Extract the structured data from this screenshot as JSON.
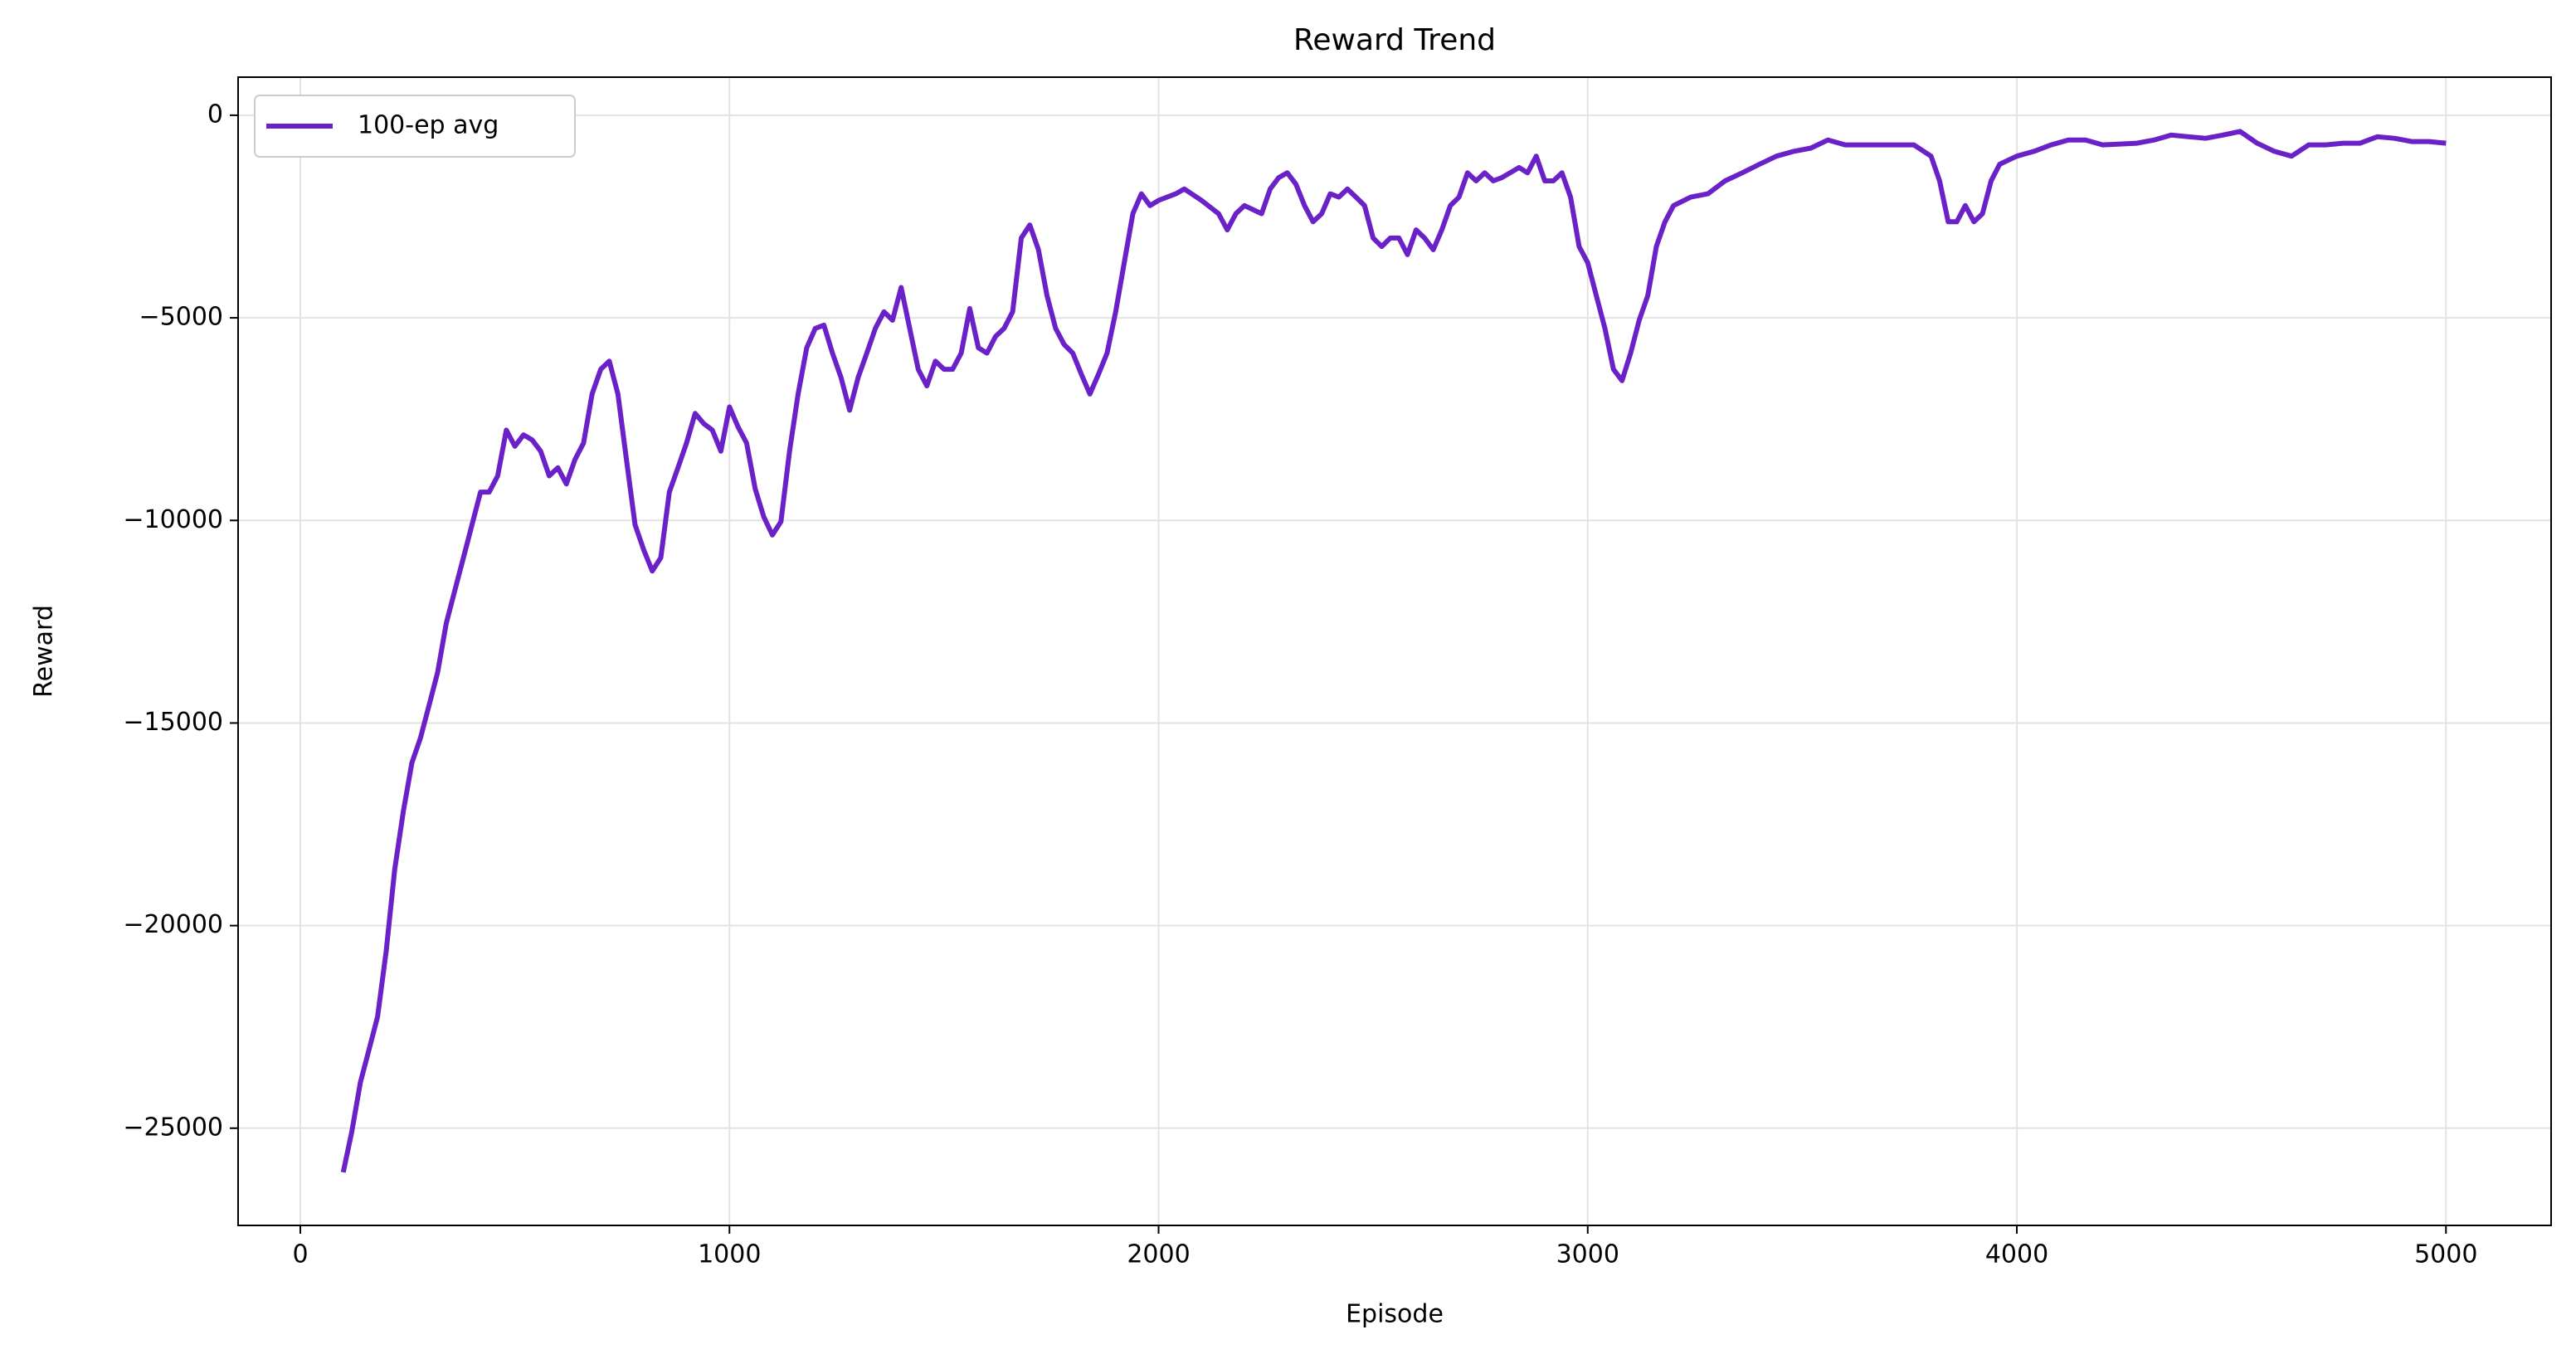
{
  "chart_data": {
    "type": "line",
    "title": "Reward Trend",
    "xlabel": "Episode",
    "ylabel": "Reward",
    "x": [
      100,
      120,
      140,
      160,
      180,
      200,
      220,
      240,
      260,
      280,
      300,
      320,
      340,
      360,
      380,
      400,
      420,
      440,
      460,
      480,
      500,
      520,
      540,
      560,
      580,
      600,
      620,
      640,
      660,
      680,
      700,
      720,
      740,
      760,
      780,
      800,
      820,
      840,
      860,
      880,
      900,
      920,
      940,
      960,
      980,
      1000,
      1020,
      1040,
      1060,
      1080,
      1100,
      1120,
      1140,
      1160,
      1180,
      1200,
      1220,
      1240,
      1260,
      1280,
      1300,
      1320,
      1340,
      1360,
      1380,
      1400,
      1420,
      1440,
      1460,
      1480,
      1500,
      1520,
      1540,
      1560,
      1580,
      1600,
      1620,
      1640,
      1660,
      1680,
      1700,
      1720,
      1740,
      1760,
      1780,
      1800,
      1820,
      1840,
      1860,
      1880,
      1900,
      1920,
      1940,
      1960,
      1980,
      2000,
      2040,
      2060,
      2100,
      2140,
      2160,
      2180,
      2200,
      2240,
      2260,
      2280,
      2300,
      2320,
      2340,
      2360,
      2380,
      2400,
      2420,
      2440,
      2460,
      2480,
      2500,
      2520,
      2540,
      2560,
      2580,
      2600,
      2620,
      2640,
      2660,
      2680,
      2700,
      2720,
      2740,
      2760,
      2780,
      2800,
      2840,
      2860,
      2880,
      2900,
      2920,
      2940,
      2960,
      2980,
      3000,
      3020,
      3040,
      3060,
      3080,
      3100,
      3120,
      3140,
      3160,
      3180,
      3200,
      3240,
      3280,
      3320,
      3360,
      3400,
      3440,
      3480,
      3520,
      3560,
      3600,
      3640,
      3700,
      3760,
      3800,
      3820,
      3840,
      3860,
      3880,
      3900,
      3920,
      3940,
      3960,
      4000,
      4040,
      4080,
      4120,
      4160,
      4200,
      4280,
      4320,
      4360,
      4400,
      4440,
      4480,
      4520,
      4560,
      4600,
      4640,
      4680,
      4720,
      4760,
      4800,
      4840,
      4880,
      4920,
      4960,
      5000
    ],
    "series": [
      {
        "name": "100-ep avg",
        "color": "#6b21c8",
        "values": [
          -26090,
          -25080,
          -23870,
          -23060,
          -22250,
          -20630,
          -18610,
          -17190,
          -15980,
          -15370,
          -14560,
          -13750,
          -12540,
          -11730,
          -10920,
          -10110,
          -9300,
          -9300,
          -8900,
          -7770,
          -8170,
          -7890,
          -8010,
          -8290,
          -8900,
          -8700,
          -9100,
          -8500,
          -8090,
          -6880,
          -6270,
          -6070,
          -6880,
          -8500,
          -10110,
          -10720,
          -11250,
          -10920,
          -9300,
          -8700,
          -8090,
          -7360,
          -7610,
          -7770,
          -8290,
          -7200,
          -7690,
          -8090,
          -9220,
          -9910,
          -10360,
          -10030,
          -8290,
          -6880,
          -5740,
          -5260,
          -5180,
          -5870,
          -6470,
          -7280,
          -6470,
          -5870,
          -5260,
          -4850,
          -5060,
          -4250,
          -5260,
          -6270,
          -6680,
          -6070,
          -6270,
          -6270,
          -5870,
          -4770,
          -5740,
          -5870,
          -5460,
          -5260,
          -4850,
          -3030,
          -2710,
          -3320,
          -4450,
          -5260,
          -5660,
          -5870,
          -6390,
          -6880,
          -6390,
          -5870,
          -4850,
          -3640,
          -2430,
          -1940,
          -2230,
          -2100,
          -1940,
          -1820,
          -2100,
          -2430,
          -2830,
          -2430,
          -2230,
          -2430,
          -1820,
          -1540,
          -1420,
          -1700,
          -2230,
          -2630,
          -2430,
          -1940,
          -2020,
          -1820,
          -2020,
          -2230,
          -3030,
          -3240,
          -3030,
          -3030,
          -3440,
          -2830,
          -3030,
          -3320,
          -2830,
          -2230,
          -2020,
          -1420,
          -1620,
          -1420,
          -1620,
          -1540,
          -1290,
          -1420,
          -1010,
          -1620,
          -1620,
          -1420,
          -2020,
          -3240,
          -3640,
          -4450,
          -5260,
          -6270,
          -6550,
          -5870,
          -5060,
          -4450,
          -3240,
          -2630,
          -2230,
          -2020,
          -1940,
          -1620,
          -1420,
          -1210,
          -1010,
          -890,
          -810,
          -610,
          -730,
          -730,
          -730,
          -730,
          -1010,
          -1620,
          -2630,
          -2630,
          -2230,
          -2630,
          -2430,
          -1620,
          -1210,
          -1010,
          -890,
          -730,
          -610,
          -610,
          -730,
          -690,
          -610,
          -490,
          -530,
          -570,
          -490,
          -400,
          -690,
          -890,
          -1010,
          -730,
          -730,
          -690,
          -690,
          -530,
          -570,
          -650,
          -650,
          -690
        ]
      }
    ],
    "xlim": [
      -145,
      5245
    ],
    "ylim": [
      -27400,
      940
    ],
    "xticks": [
      0,
      1000,
      2000,
      3000,
      4000,
      5000
    ],
    "yticks": [
      {
        "value": -25000,
        "label": "−25000"
      },
      {
        "value": -20000,
        "label": "−20000"
      },
      {
        "value": -15000,
        "label": "−15000"
      },
      {
        "value": -10000,
        "label": "−10000"
      },
      {
        "value": -5000,
        "label": "−5000"
      },
      0
    ],
    "grid": true,
    "legend": "upper left"
  }
}
